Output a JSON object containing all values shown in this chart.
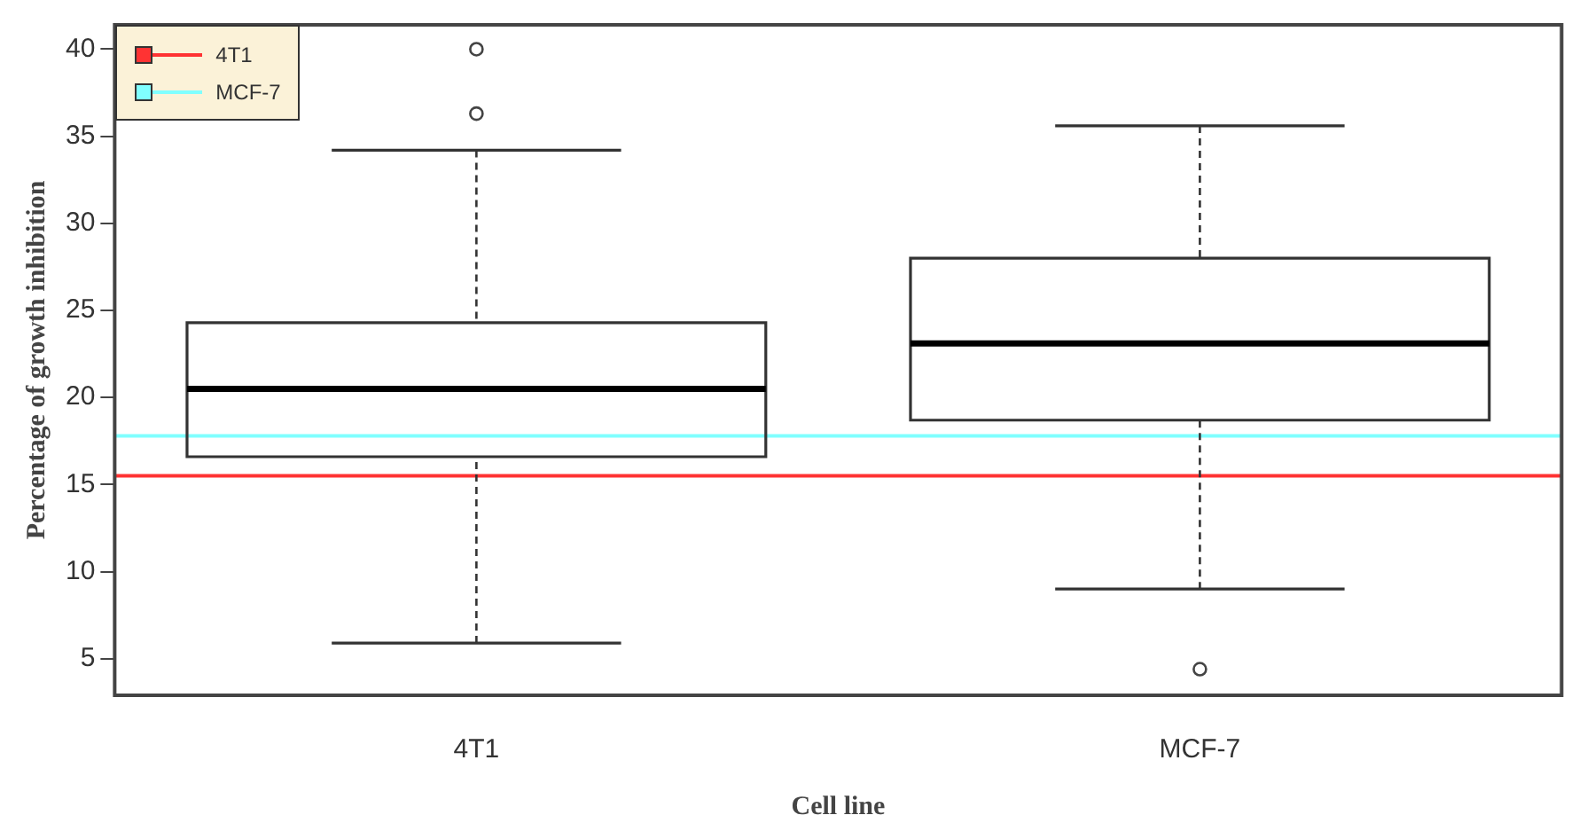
{
  "chart_data": {
    "type": "box",
    "xlabel": "Cell line",
    "ylabel": "Percentage of growth inhibition",
    "categories": [
      "4T1",
      "MCF-7"
    ],
    "boxes": [
      {
        "low": 5.9,
        "q1": 16.6,
        "median": 20.5,
        "q3": 24.3,
        "high": 34.2,
        "outliers": [
          36.3,
          40.0
        ]
      },
      {
        "low": 9.0,
        "q1": 18.7,
        "median": 23.1,
        "q3": 28.0,
        "high": 35.6,
        "outliers": [
          4.4
        ]
      }
    ],
    "ylim": [
      2.9,
      41.4
    ],
    "yticks": [
      5,
      10,
      15,
      20,
      25,
      30,
      35,
      40
    ],
    "ref_lines": [
      {
        "axis": "y",
        "value": 15.5,
        "label": "4T1",
        "color": "#ff3333"
      },
      {
        "axis": "y",
        "value": 17.8,
        "label": "MCF-7",
        "color": "#80ffff"
      }
    ],
    "grid": false,
    "legend": "top left"
  }
}
